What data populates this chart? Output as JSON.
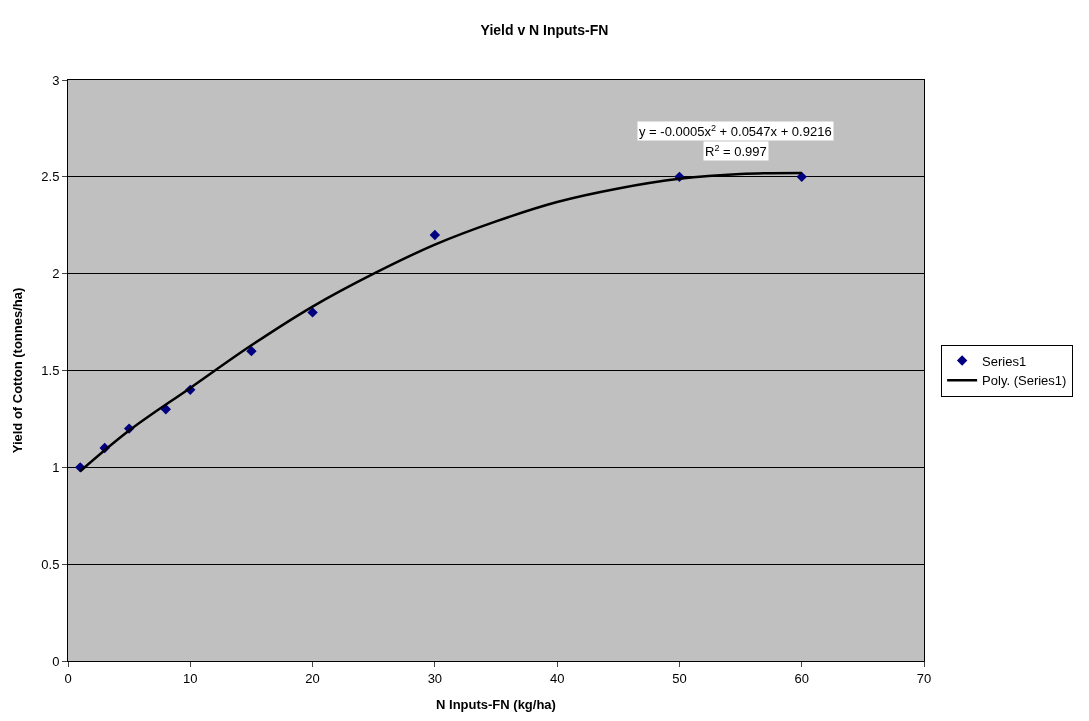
{
  "chart_data": {
    "type": "scatter",
    "title": "Yield v N Inputs-FN",
    "xlabel": "N Inputs-FN (kg/ha)",
    "ylabel": "Yield of Cotton (tonnes/ha)",
    "x": [
      1,
      3,
      5,
      8,
      10,
      15,
      20,
      30,
      50,
      60
    ],
    "series": [
      {
        "name": "Series1",
        "color": "#000080",
        "values": [
          1,
          1.1,
          1.2,
          1.3,
          1.4,
          1.6,
          1.8,
          2.2,
          2.5,
          2.5
        ]
      },
      {
        "name": "Poly. (Series1)",
        "type": "line",
        "marker": "none",
        "color": "#000000",
        "x": [
          1,
          5,
          10,
          15,
          20,
          25,
          30,
          35,
          40,
          45,
          50,
          55,
          60
        ],
        "values": [
          0.98,
          1.19,
          1.41,
          1.63,
          1.83,
          2.0,
          2.15,
          2.27,
          2.37,
          2.44,
          2.49,
          2.515,
          2.52
        ]
      }
    ],
    "annotations": [
      "y = -0.0005x$^{2}$ + 0.0547x + 0.9216",
      "R$^{2}$ = 0.997"
    ],
    "xlim": [
      0,
      70
    ],
    "xticks": [
      0,
      10,
      20,
      30,
      40,
      50,
      60,
      70
    ],
    "ylim": [
      0,
      3
    ],
    "yticks": [
      0,
      0.5,
      1,
      1.5,
      2,
      2.5,
      3
    ],
    "grid": "y",
    "legend": "right",
    "marker": "diamond",
    "line_style": "solid"
  }
}
